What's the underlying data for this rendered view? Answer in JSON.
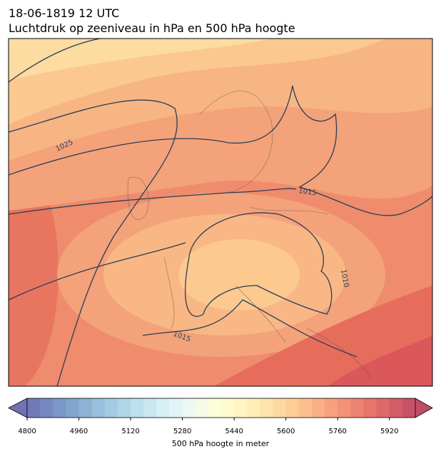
{
  "header": {
    "line1": "18-06-1819 12 UTC",
    "line2": "Luchtdruk op zeeniveau in hPa en 500 hPa hoogte"
  },
  "isobar_labels": [
    1025,
    1015,
    1010,
    1015
  ],
  "colorbar": {
    "label": "500 hPa hoogte in meter",
    "lim": [
      4800,
      6000
    ],
    "step": 40,
    "ticks": [
      4800,
      4960,
      5120,
      5280,
      5440,
      5600,
      5760,
      5920
    ]
  }
}
